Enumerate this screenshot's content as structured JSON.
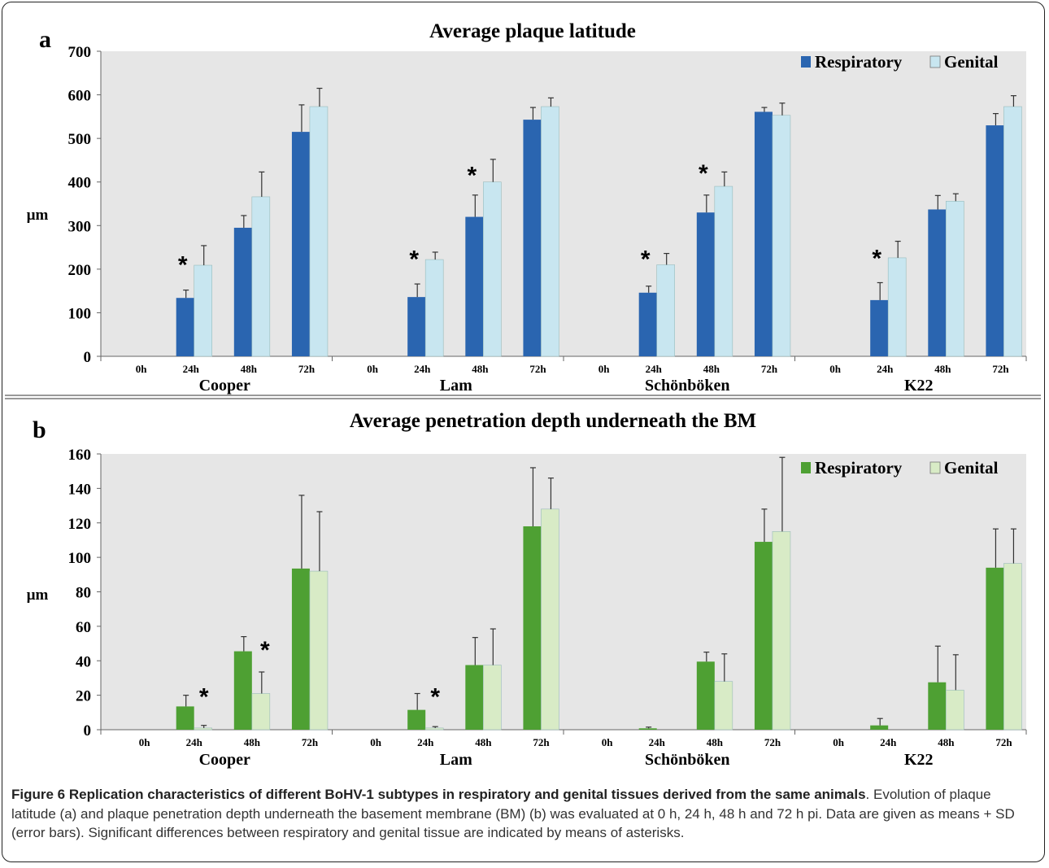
{
  "chart_data": [
    {
      "type": "bar",
      "panel": "a",
      "title": "Average plaque latitude",
      "ylabel": "µm",
      "ylim": [
        0,
        700
      ],
      "yticks": [
        0,
        100,
        200,
        300,
        400,
        500,
        600,
        700
      ],
      "groups": [
        "Cooper",
        "Lam",
        "Schönböken",
        "K22"
      ],
      "categories": [
        "0h",
        "24h",
        "48h",
        "72h"
      ],
      "grid": false,
      "legend_position": "top-right",
      "colors": {
        "Respiratory": "#2a65b0",
        "Genital": "#c8e6f0",
        "background": "#e6e6e6"
      },
      "series": [
        {
          "name": "Respiratory",
          "values": [
            [
              0,
              134,
              295,
              515
            ],
            [
              0,
              136,
              320,
              543
            ],
            [
              0,
              146,
              330,
              561
            ],
            [
              0,
              129,
              337,
              530
            ]
          ],
          "errors": [
            [
              0,
              18,
              28,
              62
            ],
            [
              0,
              30,
              50,
              28
            ],
            [
              0,
              15,
              40,
              10
            ],
            [
              0,
              40,
              32,
              27
            ]
          ]
        },
        {
          "name": "Genital",
          "values": [
            [
              0,
              209,
              366,
              573
            ],
            [
              0,
              222,
              400,
              573
            ],
            [
              0,
              210,
              390,
              553
            ],
            [
              0,
              226,
              356,
              573
            ]
          ],
          "errors": [
            [
              0,
              45,
              57,
              42
            ],
            [
              0,
              17,
              52,
              20
            ],
            [
              0,
              26,
              33,
              28
            ],
            [
              0,
              38,
              17,
              25
            ]
          ]
        }
      ],
      "annotations": [
        {
          "text": "*",
          "group": 0,
          "category": 1,
          "y": 225
        },
        {
          "text": "*",
          "group": 1,
          "category": 1,
          "y": 238
        },
        {
          "text": "*",
          "group": 1,
          "category": 2,
          "y": 430
        },
        {
          "text": "*",
          "group": 2,
          "category": 1,
          "y": 238
        },
        {
          "text": "*",
          "group": 2,
          "category": 2,
          "y": 435
        },
        {
          "text": "*",
          "group": 3,
          "category": 1,
          "y": 240
        }
      ]
    },
    {
      "type": "bar",
      "panel": "b",
      "title": "Average penetration depth underneath the BM",
      "ylabel": "µm",
      "ylim": [
        0,
        160
      ],
      "yticks": [
        0,
        20,
        40,
        60,
        80,
        100,
        120,
        140,
        160
      ],
      "groups": [
        "Cooper",
        "Lam",
        "Schönböken",
        "K22"
      ],
      "categories": [
        "0h",
        "24h",
        "48h",
        "72h"
      ],
      "grid": false,
      "legend_position": "top-right",
      "colors": {
        "Respiratory": "#4ea033",
        "Genital": "#d8ebc6",
        "background": "#e6e6e6"
      },
      "series": [
        {
          "name": "Respiratory",
          "values": [
            [
              0,
              13.5,
              45.5,
              93.5
            ],
            [
              0,
              11.5,
              37.5,
              118
            ],
            [
              0,
              0.8,
              39.5,
              109
            ],
            [
              0,
              2.5,
              27.5,
              94
            ]
          ],
          "errors": [
            [
              0,
              6.5,
              8.5,
              42.5
            ],
            [
              0,
              9.5,
              16,
              34
            ],
            [
              0,
              0.7,
              5.5,
              19
            ],
            [
              0,
              4,
              21,
              22.5
            ]
          ]
        },
        {
          "name": "Genital",
          "values": [
            [
              0,
              1,
              21,
              92
            ],
            [
              0,
              1,
              37.5,
              128
            ],
            [
              0,
              0,
              28,
              115
            ],
            [
              0,
              0,
              23,
              96.5
            ]
          ],
          "errors": [
            [
              0,
              1.5,
              12.5,
              34.5
            ],
            [
              0,
              0.8,
              21,
              18
            ],
            [
              0,
              0,
              16,
              43
            ],
            [
              0,
              0,
              20.5,
              20
            ]
          ]
        }
      ],
      "annotations": [
        {
          "text": "*",
          "group": 0,
          "category": 1,
          "y": 23
        },
        {
          "text": "*",
          "group": 0,
          "category": 2,
          "y": 50
        },
        {
          "text": "*",
          "group": 1,
          "category": 1,
          "y": 23
        }
      ]
    }
  ],
  "caption": {
    "title": "Figure 6 Replication characteristics of different BoHV-1 subtypes in respiratory and genital tissues derived from the same animals",
    "title_end": ".",
    "text": "Evolution of plaque latitude (a) and plaque penetration depth underneath the basement membrane (BM) (b) was evaluated at 0 h, 24 h, 48 h and 72 h pi. Data are given as means + SD (error bars). Significant differences between respiratory and genital tissue are indicated by means of asterisks."
  }
}
